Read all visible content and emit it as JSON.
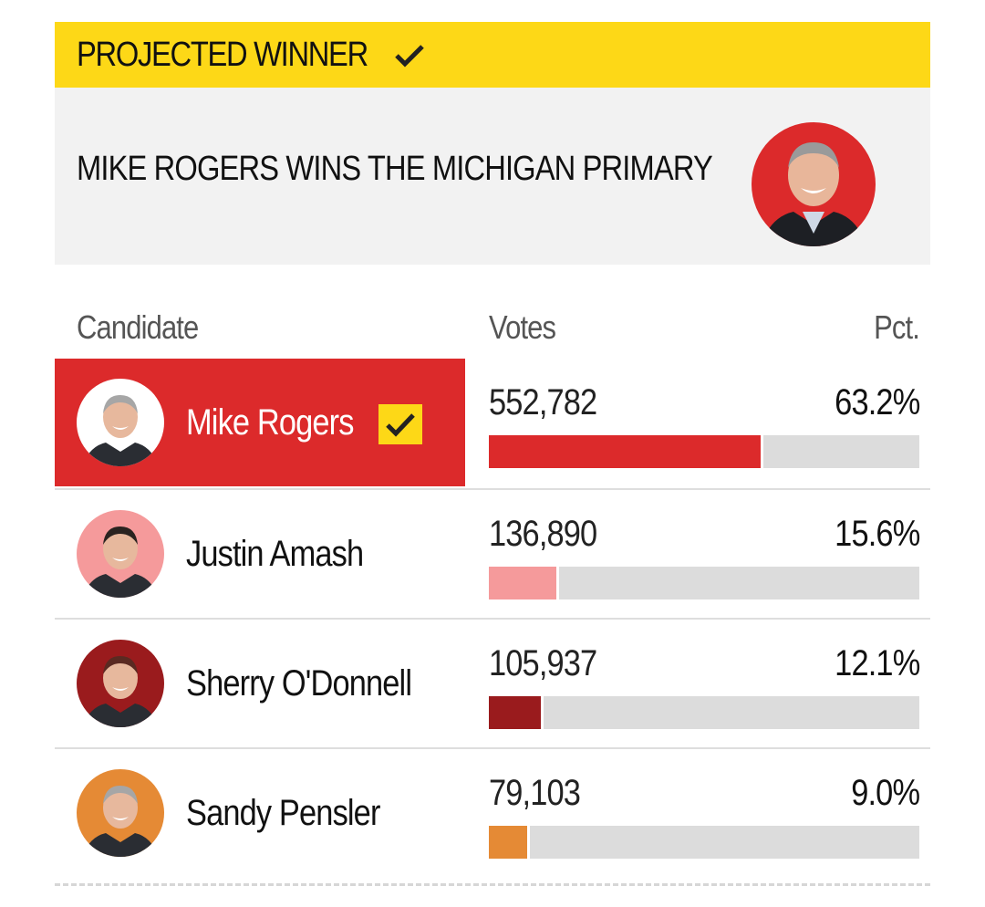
{
  "banner": {
    "label": "PROJECTED WINNER"
  },
  "headline": {
    "text": "MIKE ROGERS WINS THE MICHIGAN PRIMARY"
  },
  "table": {
    "col_candidate": "Candidate",
    "col_votes": "Votes",
    "col_pct": "Pct."
  },
  "colors": {
    "banner_yellow": "#fdd817",
    "winner_red": "#dc2a2b",
    "track_gray": "#dcdcdc"
  },
  "chart_data": {
    "type": "bar",
    "categories": [
      "Mike Rogers",
      "Justin Amash",
      "Sherry O'Donnell",
      "Sandy Pensler"
    ],
    "votes": [
      552782,
      136890,
      105937,
      79103
    ],
    "values": [
      63.2,
      15.6,
      12.1,
      9.0
    ],
    "ylim": [
      0,
      100
    ],
    "rows": [
      {
        "name": "Mike Rogers",
        "votes": "552,782",
        "pct": "63.2%",
        "pct_value": 63.2,
        "color": "#dc2a2b",
        "avatar_bg": "#ffffff",
        "winner": true
      },
      {
        "name": "Justin Amash",
        "votes": "136,890",
        "pct": "15.6%",
        "pct_value": 15.6,
        "color": "#f59a9b",
        "avatar_bg": "#f59a9b",
        "winner": false
      },
      {
        "name": "Sherry O'Donnell",
        "votes": "105,937",
        "pct": "12.1%",
        "pct_value": 12.1,
        "color": "#9a1b1d",
        "avatar_bg": "#9a1b1d",
        "winner": false
      },
      {
        "name": "Sandy Pensler",
        "votes": "79,103",
        "pct": "9.0%",
        "pct_value": 9.0,
        "color": "#e58a35",
        "avatar_bg": "#e58a35",
        "winner": false
      }
    ]
  }
}
